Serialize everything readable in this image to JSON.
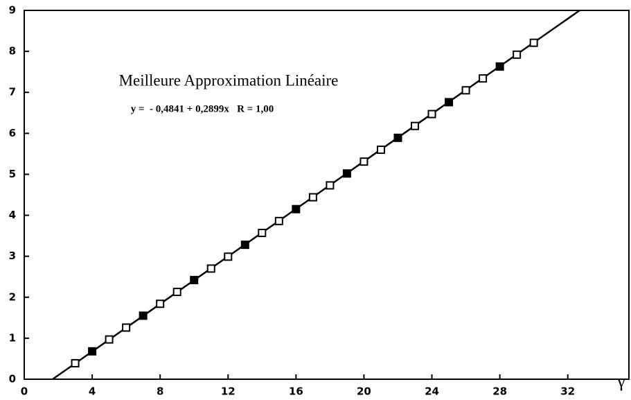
{
  "chart_data": {
    "type": "scatter",
    "annotations": [
      "Meilleure Approximation Linéaire",
      "y =  - 0,4841 + 0,2899x   R = 1,00"
    ],
    "x_label": "γ",
    "x": [
      3,
      4,
      5,
      6,
      7,
      8,
      9,
      10,
      11,
      12,
      13,
      14,
      15,
      16,
      17,
      18,
      19,
      20,
      21,
      22,
      23,
      24,
      25,
      26,
      27,
      28,
      29,
      30
    ],
    "values": [
      0.39,
      0.68,
      0.97,
      1.26,
      1.55,
      1.84,
      2.13,
      2.42,
      2.7,
      2.99,
      3.28,
      3.57,
      3.86,
      4.15,
      4.44,
      4.73,
      5.02,
      5.31,
      5.6,
      5.89,
      6.18,
      6.47,
      6.76,
      7.05,
      7.34,
      7.63,
      7.92,
      8.21
    ],
    "color": "#000000",
    "fit_line": {
      "x": [
        1.67,
        32.7
      ],
      "y": [
        0,
        9
      ]
    },
    "xlim": [
      0,
      35.6
    ],
    "xticks": [
      0,
      4,
      8,
      12,
      16,
      20,
      24,
      28,
      32
    ],
    "ylim": [
      0,
      9
    ],
    "yticks": [
      0,
      1,
      2,
      3,
      4,
      5,
      6,
      7,
      8,
      9
    ],
    "grid": false
  }
}
